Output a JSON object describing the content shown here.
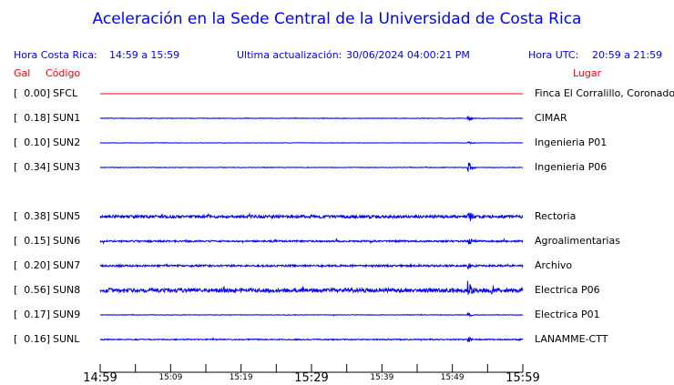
{
  "title": "Aceleración en la Sede Central de la Universidad de Costa Rica",
  "header": {
    "local_label": "Hora Costa Rica:",
    "local_range": "14:59 a 15:59",
    "update_label": "Ultima actualización:",
    "update_value": "30/06/2024 04:00:21 PM",
    "utc_label": "Hora UTC:",
    "utc_range": "20:59 a 21:59"
  },
  "columns": {
    "gal": "Gal",
    "code": "Código",
    "place": "Lugar"
  },
  "colors": {
    "text_accent": "#0000ff",
    "header_red": "#ff0000",
    "trace": "#0000ff",
    "inactive_trace": "#ff0000"
  },
  "stations": [
    {
      "gal": "[  0.00]",
      "code": "SFCL",
      "place": "Finca El Corralillo, Coronado"
    },
    {
      "gal": "[  0.18]",
      "code": "SUN1",
      "place": "CIMAR"
    },
    {
      "gal": "[  0.10]",
      "code": "SUN2",
      "place": "Ingenieria P01"
    },
    {
      "gal": "[  0.34]",
      "code": "SUN3",
      "place": "Ingenieria P06"
    },
    {
      "gal": "[  0.38]",
      "code": "SUN5",
      "place": "Rectoria"
    },
    {
      "gal": "[  0.15]",
      "code": "SUN6",
      "place": "Agroalimentarias"
    },
    {
      "gal": "[  0.20]",
      "code": "SUN7",
      "place": "Archivo"
    },
    {
      "gal": "[  0.56]",
      "code": "SUN8",
      "place": "Electrica P06"
    },
    {
      "gal": "[  0.17]",
      "code": "SUN9",
      "place": "Electrica P01"
    },
    {
      "gal": "[  0.16]",
      "code": "SUNL",
      "place": "LANAMME-CTT"
    }
  ],
  "time_axis": {
    "major": [
      "14:59",
      "15:29",
      "15:59"
    ],
    "minor": [
      "15:09",
      "15:19",
      "15:39",
      "15:49"
    ]
  }
}
